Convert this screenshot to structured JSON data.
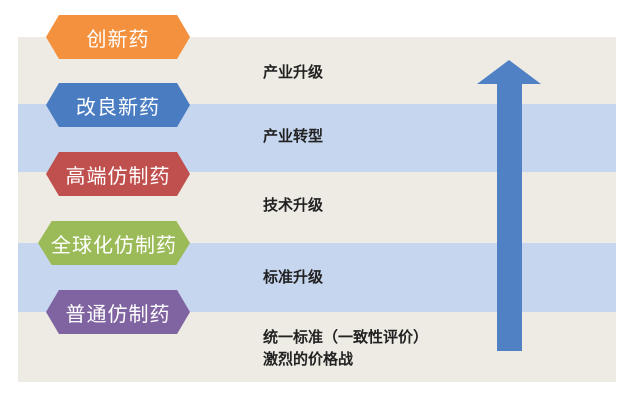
{
  "categories": [
    {
      "label": "创新药",
      "color": "#f4913f"
    },
    {
      "label": "改良新药",
      "color": "#4a7cc2"
    },
    {
      "label": "高端仿制药",
      "color": "#c0504d"
    },
    {
      "label": "全球化仿制药",
      "color": "#9bbb59"
    },
    {
      "label": "普通仿制药",
      "color": "#8064a2"
    }
  ],
  "stages": [
    "产业升级",
    "产业转型",
    "技术升级",
    "标准升级"
  ],
  "bottom_stage": {
    "line1": "统一标准（一致性评价）",
    "line2": "激烈的价格战"
  },
  "arrow": {
    "color": "#4f81c4",
    "direction": "up"
  }
}
